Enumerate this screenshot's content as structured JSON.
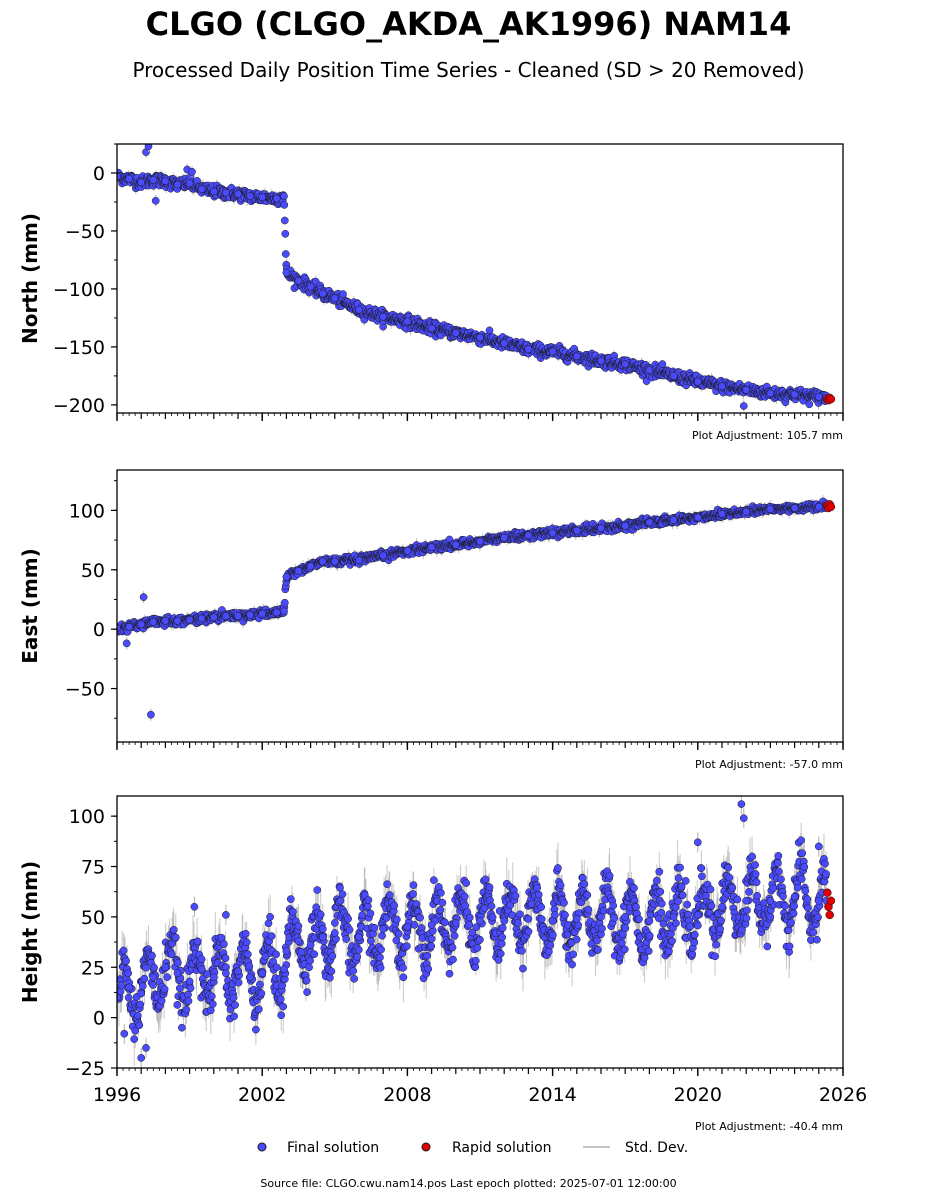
{
  "header": {
    "title": "CLGO (CLGO_AKDA_AK1996) NAM14",
    "subtitle": "Processed Daily Position Time Series - Cleaned (SD > 20 Removed)"
  },
  "footer": {
    "source": "Source file: CLGO.cwu.nam14.pos  Last epoch plotted: 2025-07-01 12:00:00"
  },
  "colors": {
    "final": "#4a4aff",
    "rapid": "#e00000",
    "stddev": "#b0b0b0",
    "marker_edge": "#1a1a1a"
  },
  "legend": [
    {
      "key": "final",
      "label": "Final solution"
    },
    {
      "key": "rapid",
      "label": "Rapid solution"
    },
    {
      "key": "stddev",
      "label": "Std. Dev."
    }
  ],
  "chart_data": [
    {
      "type": "scatter",
      "ylabel": "North (mm)",
      "adjustment": "Plot Adjustment: 105.7 mm",
      "xlim": [
        1996,
        2026
      ],
      "ylim": [
        -207,
        25
      ],
      "yticks": [
        0,
        -50,
        -100,
        -150,
        -200
      ],
      "ytick_labels": [
        "0",
        "−50",
        "−100",
        "−150",
        "−200"
      ],
      "xticks": [
        1996,
        2002,
        2008,
        2014,
        2020,
        2026
      ],
      "xtick_labels": [
        "",
        "",
        "",
        "",
        "",
        ""
      ],
      "series": [
        {
          "name": "Final solution",
          "kind": "final",
          "x": [
            1996.0,
            1996.5,
            1997.0,
            1997.5,
            1998.0,
            1998.5,
            1999.0,
            1999.5,
            2000.0,
            2000.5,
            2001.0,
            2001.5,
            2002.0,
            2002.6,
            2002.9,
            2003.0,
            2003.5,
            2004.0,
            2004.5,
            2005.0,
            2006.0,
            2007.0,
            2008.0,
            2009.0,
            2010.0,
            2011.0,
            2012.0,
            2013.0,
            2014.0,
            2015.0,
            2016.0,
            2017.0,
            2018.0,
            2019.0,
            2020.0,
            2021.0,
            2022.0,
            2023.0,
            2024.0,
            2025.0,
            2025.3
          ],
          "y": [
            -3,
            -5,
            -8,
            -6,
            -7,
            -10,
            -9,
            -14,
            -16,
            -17,
            -18,
            -20,
            -21,
            -22,
            -20,
            -86,
            -93,
            -98,
            -104,
            -108,
            -118,
            -124,
            -128,
            -134,
            -138,
            -142,
            -147,
            -152,
            -154,
            -158,
            -162,
            -165,
            -170,
            -175,
            -180,
            -184,
            -187,
            -190,
            -191,
            -193,
            -194
          ],
          "outliers_x": [
            1997.2,
            1997.3,
            1997.6,
            1998.9,
            1999.1,
            2021.9
          ],
          "outliers_y": [
            18,
            23,
            -24,
            3,
            1,
            -201
          ]
        },
        {
          "name": "Rapid solution",
          "kind": "rapid",
          "x": [
            2025.35,
            2025.4,
            2025.45,
            2025.5
          ],
          "y": [
            -195,
            -196,
            -194,
            -195
          ]
        }
      ]
    },
    {
      "type": "scatter",
      "ylabel": "East (mm)",
      "adjustment": "Plot Adjustment: -57.0 mm",
      "xlim": [
        1996,
        2026
      ],
      "ylim": [
        -95,
        134
      ],
      "yticks": [
        100,
        50,
        0,
        -50
      ],
      "ytick_labels": [
        "100",
        "50",
        "0",
        "−50"
      ],
      "xticks": [
        1996,
        2002,
        2008,
        2014,
        2020,
        2026
      ],
      "xtick_labels": [
        "",
        "",
        "",
        "",
        "",
        ""
      ],
      "series": [
        {
          "name": "Final solution",
          "kind": "final",
          "x": [
            1996.0,
            1996.5,
            1997.0,
            1997.5,
            1998.0,
            1998.5,
            1999.0,
            1999.5,
            2000.0,
            2000.5,
            2001.0,
            2001.5,
            2002.0,
            2002.6,
            2002.9,
            2003.0,
            2003.5,
            2004.0,
            2004.5,
            2005.0,
            2006.0,
            2007.0,
            2008.0,
            2009.0,
            2010.0,
            2011.0,
            2012.0,
            2013.0,
            2014.0,
            2015.0,
            2016.0,
            2017.0,
            2018.0,
            2019.0,
            2020.0,
            2021.0,
            2022.0,
            2023.0,
            2024.0,
            2025.0,
            2025.3
          ],
          "y": [
            1,
            2,
            4,
            6,
            7,
            7,
            8,
            9,
            10,
            11,
            11,
            12,
            13,
            14,
            15,
            44,
            49,
            53,
            57,
            57,
            58,
            62,
            66,
            69,
            71,
            74,
            77,
            79,
            81,
            83,
            85,
            87,
            90,
            92,
            94,
            97,
            99,
            101,
            102,
            103,
            104
          ],
          "outliers_x": [
            1997.1,
            1997.4,
            1996.4
          ],
          "outliers_y": [
            27,
            -72,
            -12
          ]
        },
        {
          "name": "Rapid solution",
          "kind": "rapid",
          "x": [
            2025.35,
            2025.4,
            2025.45,
            2025.5
          ],
          "y": [
            104,
            102,
            105,
            103
          ]
        }
      ]
    },
    {
      "type": "scatter",
      "ylabel": "Height (mm)",
      "adjustment": "Plot Adjustment: -40.4 mm",
      "xlim": [
        1996,
        2026
      ],
      "ylim": [
        -25,
        110
      ],
      "yticks": [
        100,
        75,
        50,
        25,
        0,
        -25
      ],
      "ytick_labels": [
        "100",
        "75",
        "50",
        "25",
        "0",
        "−25"
      ],
      "xticks": [
        1996,
        2002,
        2008,
        2014,
        2020,
        2026
      ],
      "xtick_labels": [
        "1996",
        "2002",
        "2008",
        "2014",
        "2020",
        "2026"
      ],
      "series": [
        {
          "name": "Final solution",
          "kind": "final",
          "x": [
            1996.0,
            1996.5,
            1997.0,
            1997.5,
            1998.0,
            1998.5,
            1999.0,
            1999.5,
            2000.0,
            2000.5,
            2001.0,
            2001.5,
            2002.0,
            2002.6,
            2002.9,
            2003.0,
            2003.5,
            2004.0,
            2004.5,
            2005.0,
            2006.0,
            2007.0,
            2008.0,
            2009.0,
            2010.0,
            2011.0,
            2012.0,
            2013.0,
            2014.0,
            2015.0,
            2016.0,
            2017.0,
            2018.0,
            2019.0,
            2020.0,
            2021.0,
            2022.0,
            2023.0,
            2024.0,
            2025.0,
            2025.3
          ],
          "y": [
            10,
            15,
            12,
            20,
            25,
            22,
            18,
            24,
            20,
            22,
            23,
            20,
            22,
            25,
            24,
            33,
            38,
            36,
            40,
            42,
            40,
            44,
            45,
            46,
            47,
            48,
            48,
            49,
            48,
            49,
            50,
            50,
            48,
            50,
            51,
            55,
            58,
            58,
            60,
            58,
            58
          ],
          "outliers_x": [
            1997.0,
            1997.2,
            1996.3,
            2021.8,
            2021.9,
            2020.0,
            2025.0,
            1999.2,
            2000.5
          ],
          "outliers_y": [
            -20,
            -15,
            -8,
            106,
            99,
            87,
            85,
            55,
            51
          ]
        },
        {
          "name": "Rapid solution",
          "kind": "rapid",
          "x": [
            2025.35,
            2025.4,
            2025.45,
            2025.5
          ],
          "y": [
            62,
            55,
            51,
            58
          ]
        }
      ]
    }
  ]
}
